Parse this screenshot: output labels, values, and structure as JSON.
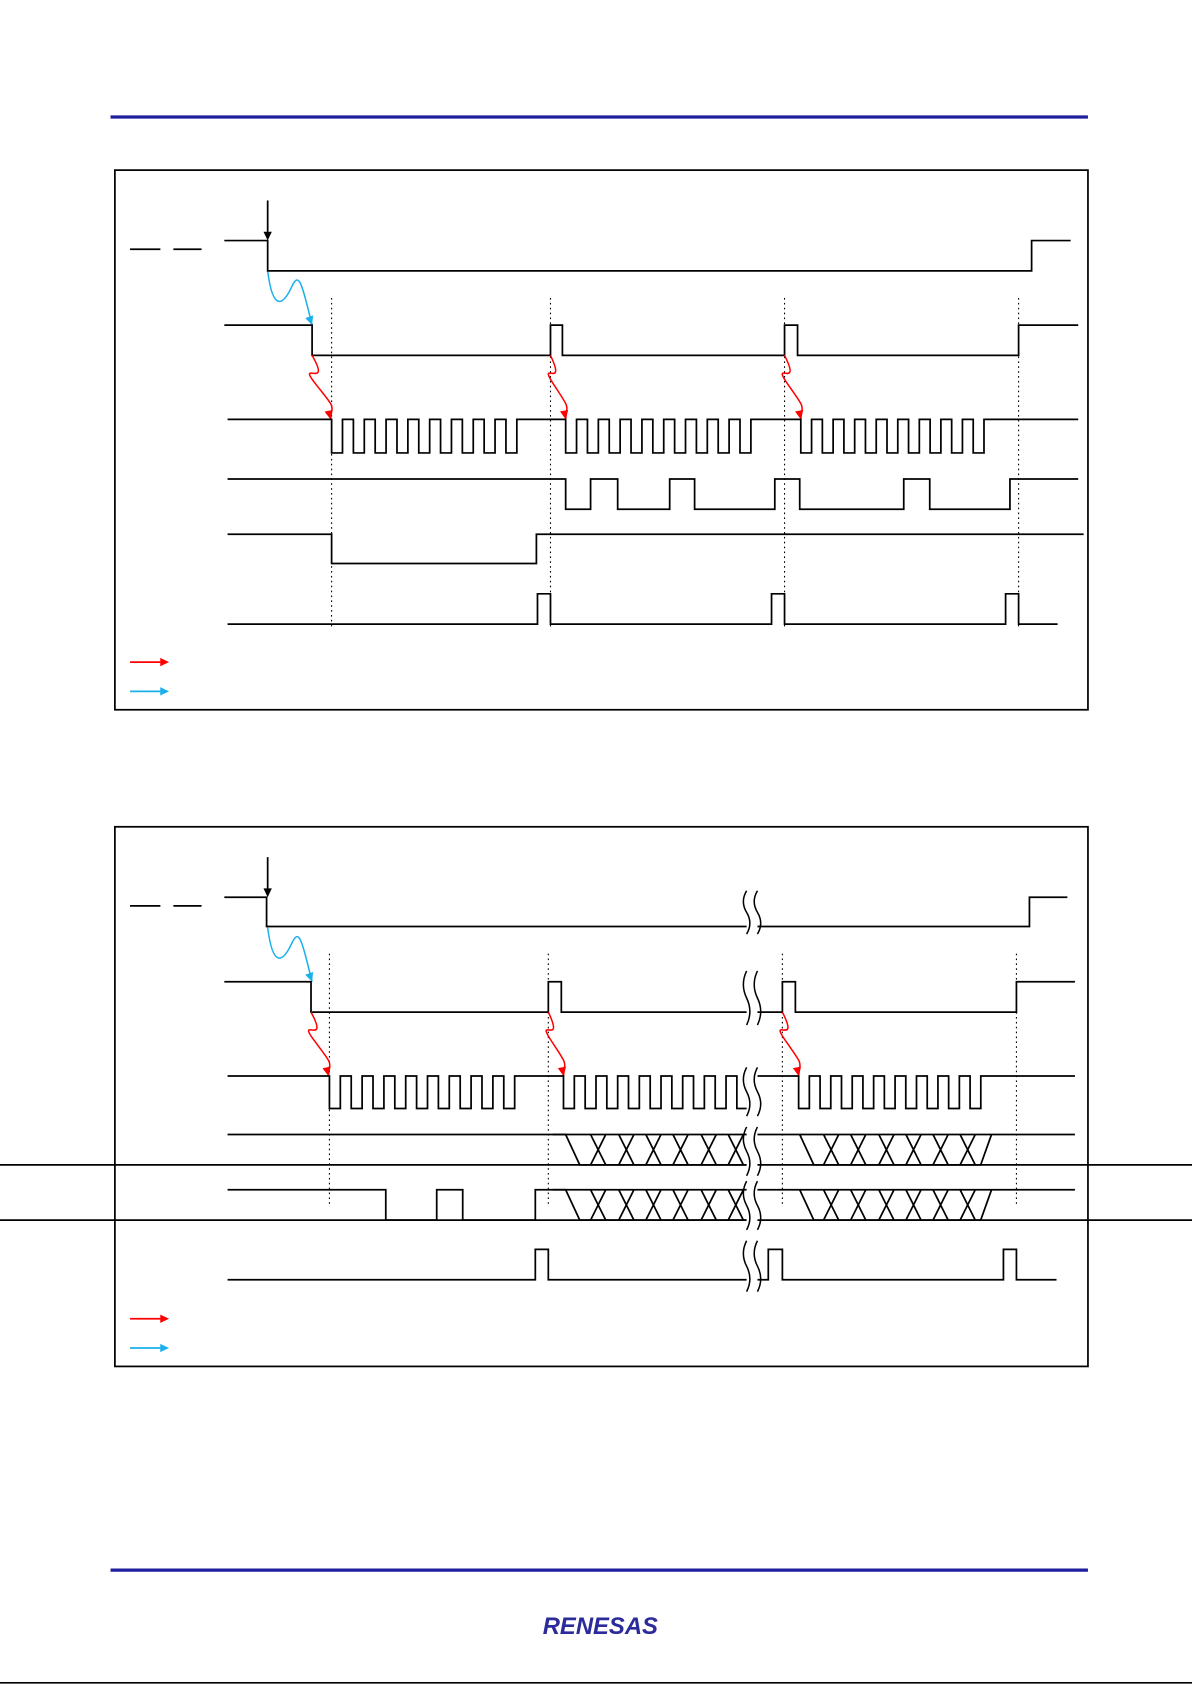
{
  "header": {
    "rule_color": "#1f1f9e"
  },
  "footer": {
    "rule_color": "#1f1f9e",
    "logo_text": "RENESAS",
    "logo_color": "#2b2b9b"
  },
  "diagrams": [
    {
      "name": "timing-diagram-1",
      "variant": "discrete-bits"
    },
    {
      "name": "timing-diagram-2",
      "variant": "bus-with-break"
    }
  ],
  "colors": {
    "red_arrow": "#ff0000",
    "blue_arrow": "#1ab0ea",
    "waveform": "#000000"
  }
}
